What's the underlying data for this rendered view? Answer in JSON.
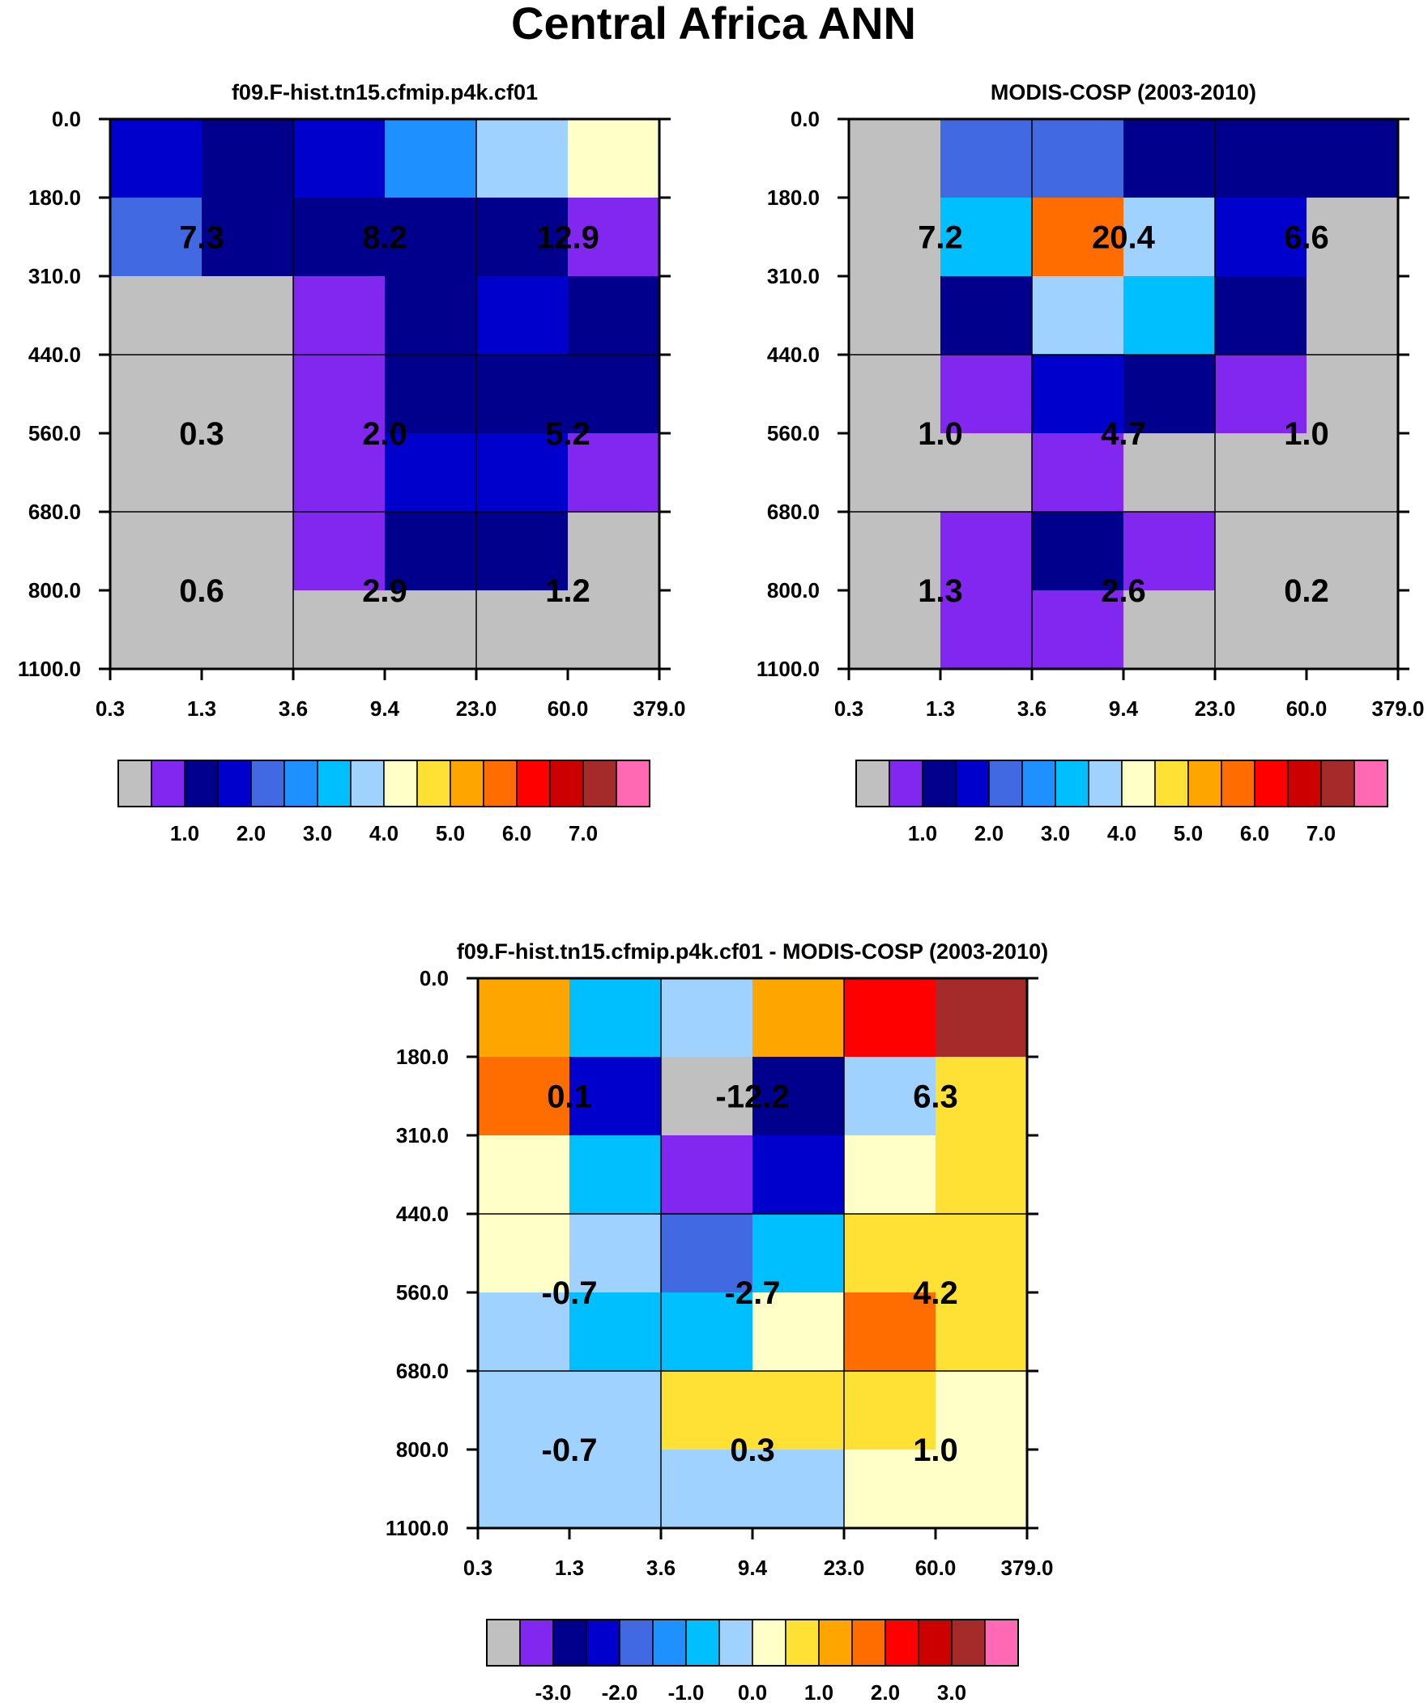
{
  "figure": {
    "title": "Central Africa ANN"
  },
  "palette": [
    "#c0c0c0",
    "#8227f0",
    "#00008c",
    "#0000cd",
    "#4169e1",
    "#1e90ff",
    "#00bfff",
    "#a0d2ff",
    "#ffffc8",
    "#ffe135",
    "#ffa500",
    "#ff6d00",
    "#ff0000",
    "#cd0000",
    "#a52a2a",
    "#ff69b4"
  ],
  "chart_data": [
    {
      "type": "heatmap",
      "title": "f09.F-hist.tn15.cfmip.p4k.cf01",
      "x_tick_labels": [
        "0.3",
        "1.3",
        "3.6",
        "9.4",
        "23.0",
        "60.0",
        "379.0"
      ],
      "y_tick_labels": [
        "0.0",
        "180.0",
        "310.0",
        "440.0",
        "560.0",
        "680.0",
        "800.0",
        "1100.0"
      ],
      "cells": [
        [
          3,
          2,
          3,
          5,
          7,
          8
        ],
        [
          4,
          2,
          2,
          2,
          2,
          1
        ],
        [
          0,
          0,
          1,
          2,
          3,
          2
        ],
        [
          0,
          0,
          1,
          2,
          2,
          2
        ],
        [
          0,
          0,
          1,
          3,
          3,
          1
        ],
        [
          0,
          0,
          1,
          2,
          2,
          0
        ],
        [
          0,
          0,
          0,
          0,
          0,
          0
        ]
      ],
      "group_labels": [
        [
          "7.3",
          "8.2",
          "12.9"
        ],
        [
          "0.3",
          "2.0",
          "5.2"
        ],
        [
          "0.6",
          "2.9",
          "1.2"
        ]
      ],
      "colorbar": {
        "labels": [
          "1.0",
          "2.0",
          "3.0",
          "4.0",
          "5.0",
          "6.0",
          "7.0"
        ],
        "levels": [
          0.5,
          1,
          1.5,
          2,
          2.5,
          3,
          3.5,
          4,
          4.5,
          5,
          5.5,
          6,
          6.5,
          7
        ]
      }
    },
    {
      "type": "heatmap",
      "title": "MODIS-COSP (2003-2010)",
      "x_tick_labels": [
        "0.3",
        "1.3",
        "3.6",
        "9.4",
        "23.0",
        "60.0",
        "379.0"
      ],
      "y_tick_labels": [
        "0.0",
        "180.0",
        "310.0",
        "440.0",
        "560.0",
        "680.0",
        "800.0",
        "1100.0"
      ],
      "cells": [
        [
          0,
          4,
          4,
          2,
          2,
          2
        ],
        [
          0,
          6,
          11,
          7,
          3,
          0
        ],
        [
          0,
          2,
          7,
          6,
          2,
          0
        ],
        [
          0,
          1,
          3,
          2,
          1,
          0
        ],
        [
          0,
          0,
          1,
          0,
          0,
          0
        ],
        [
          0,
          1,
          2,
          1,
          0,
          0
        ],
        [
          0,
          1,
          1,
          0,
          0,
          0
        ]
      ],
      "group_labels": [
        [
          "7.2",
          "20.4",
          "6.6"
        ],
        [
          "1.0",
          "4.7",
          "1.0"
        ],
        [
          "1.3",
          "2.6",
          "0.2"
        ]
      ],
      "colorbar": {
        "labels": [
          "1.0",
          "2.0",
          "3.0",
          "4.0",
          "5.0",
          "6.0",
          "7.0"
        ],
        "levels": [
          0.5,
          1,
          1.5,
          2,
          2.5,
          3,
          3.5,
          4,
          4.5,
          5,
          5.5,
          6,
          6.5,
          7
        ]
      }
    },
    {
      "type": "heatmap",
      "title": "f09.F-hist.tn15.cfmip.p4k.cf01 - MODIS-COSP (2003-2010)",
      "x_tick_labels": [
        "0.3",
        "1.3",
        "3.6",
        "9.4",
        "23.0",
        "60.0",
        "379.0"
      ],
      "y_tick_labels": [
        "0.0",
        "180.0",
        "310.0",
        "440.0",
        "560.0",
        "680.0",
        "800.0",
        "1100.0"
      ],
      "cells": [
        [
          10,
          6,
          7,
          10,
          12,
          14
        ],
        [
          11,
          3,
          0,
          2,
          7,
          9
        ],
        [
          8,
          6,
          1,
          3,
          8,
          9
        ],
        [
          8,
          7,
          4,
          6,
          9,
          9
        ],
        [
          7,
          6,
          6,
          8,
          11,
          9
        ],
        [
          7,
          7,
          9,
          9,
          9,
          8
        ],
        [
          7,
          7,
          7,
          7,
          8,
          8
        ]
      ],
      "group_labels": [
        [
          "0.1",
          "-12.2",
          "6.3"
        ],
        [
          "-0.7",
          "-2.7",
          "4.2"
        ],
        [
          "-0.7",
          "0.3",
          "1.0"
        ]
      ],
      "colorbar": {
        "labels": [
          "-3.0",
          "-2.0",
          "-1.0",
          "0.0",
          "1.0",
          "2.0",
          "3.0"
        ],
        "levels": [
          -3.5,
          -3,
          -2.5,
          -2,
          -1.5,
          -1,
          -0.5,
          0,
          0.5,
          1,
          1.5,
          2,
          2.5,
          3
        ]
      }
    }
  ]
}
